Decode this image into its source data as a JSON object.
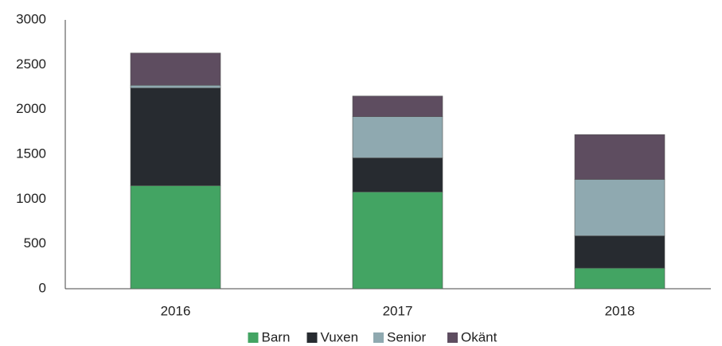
{
  "chart_data": {
    "type": "stacked_bar",
    "categories": [
      "2016",
      "2017",
      "2018"
    ],
    "series": [
      {
        "name": "Barn",
        "color": "#43a463",
        "values": [
          1150,
          1080,
          230
        ]
      },
      {
        "name": "Vuxen",
        "color": "#272b30",
        "values": [
          1090,
          380,
          360
        ]
      },
      {
        "name": "Senior",
        "color": "#8fa9b0",
        "values": [
          30,
          460,
          630
        ]
      },
      {
        "name": "Okänt",
        "color": "#5e4d60",
        "values": [
          360,
          230,
          500
        ]
      }
    ],
    "ylim": [
      0,
      3000
    ],
    "yticks": [
      0,
      500,
      1000,
      1500,
      2000,
      2500,
      3000
    ],
    "grid": false
  }
}
